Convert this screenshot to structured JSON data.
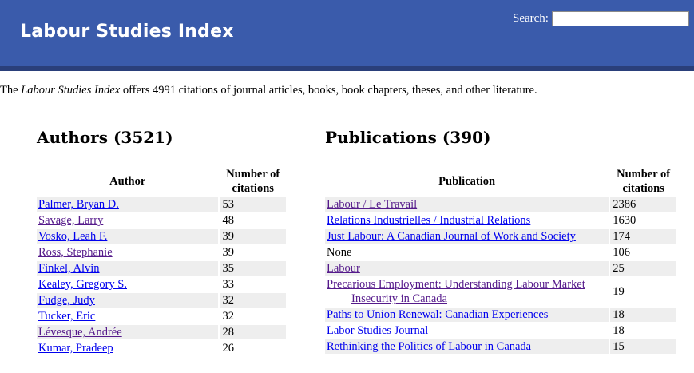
{
  "header": {
    "title": "Labour Studies Index",
    "search_label": "Search:",
    "search_value": ""
  },
  "intro": {
    "prefix": "The ",
    "name": "Labour Studies Index",
    "suffix": " offers 4991 citations of journal articles, books, book chapters, theses, and other literature."
  },
  "authors": {
    "title": "Authors (3521)",
    "col_author": "Author",
    "col_count_line1": "Number of",
    "col_count_line2": "citations",
    "rows": [
      {
        "name": "Palmer, Bryan D.",
        "count": "53",
        "visited": false
      },
      {
        "name": "Savage, Larry",
        "count": "48",
        "visited": true
      },
      {
        "name": "Vosko, Leah F.",
        "count": "39",
        "visited": false
      },
      {
        "name": "Ross, Stephanie",
        "count": "39",
        "visited": true
      },
      {
        "name": "Finkel, Alvin",
        "count": "35",
        "visited": false
      },
      {
        "name": "Kealey, Gregory S.",
        "count": "33",
        "visited": false
      },
      {
        "name": "Fudge, Judy",
        "count": "32",
        "visited": false
      },
      {
        "name": "Tucker, Eric",
        "count": "32",
        "visited": false
      },
      {
        "name": "Lévesque, Andrée",
        "count": "28",
        "visited": true
      },
      {
        "name": "Kumar, Pradeep",
        "count": "26",
        "visited": false
      }
    ]
  },
  "publications": {
    "title": "Publications (390)",
    "col_pub": "Publication",
    "col_count_line1": "Number of",
    "col_count_line2": "citations",
    "rows": [
      {
        "name": "Labour / Le Travail",
        "count": "2386",
        "link": true,
        "visited": true
      },
      {
        "name": "Relations Industrielles / Industrial Relations",
        "count": "1630",
        "link": true,
        "visited": false
      },
      {
        "name": "Just Labour: A Canadian Journal of Work and Society",
        "count": "174",
        "link": true,
        "visited": false
      },
      {
        "name": "None",
        "count": "106",
        "link": false,
        "visited": false
      },
      {
        "name": "Labour",
        "count": "25",
        "link": true,
        "visited": true
      },
      {
        "name": "Precarious Employment: Understanding Labour Market Insecurity in Canada",
        "count": "19",
        "link": true,
        "visited": true
      },
      {
        "name": "Paths to Union Renewal: Canadian Experiences",
        "count": "18",
        "link": true,
        "visited": false
      },
      {
        "name": "Labor Studies Journal",
        "count": "18",
        "link": true,
        "visited": false
      },
      {
        "name": "Rethinking the Politics of Labour in Canada",
        "count": "15",
        "link": true,
        "visited": false
      }
    ]
  }
}
